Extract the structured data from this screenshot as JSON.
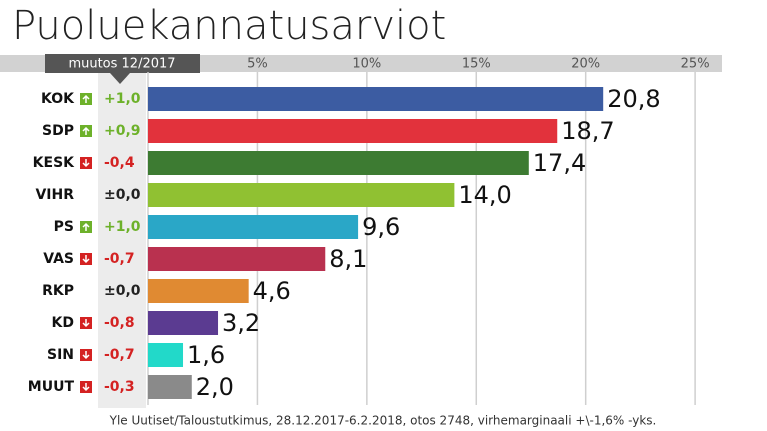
{
  "chart_data": {
    "type": "bar",
    "orientation": "horizontal",
    "title": "Puoluekannatusarviot",
    "change_header": "muutos 12/2017",
    "categories": [
      "KOK",
      "SDP",
      "KESK",
      "VIHR",
      "PS",
      "VAS",
      "RKP",
      "KD",
      "SIN",
      "MUUT"
    ],
    "changes": [
      "+1,0",
      "+0,9",
      "-0,4",
      "±0,0",
      "+1,0",
      "-0,7",
      "±0,0",
      "-0,8",
      "-0,7",
      "-0,3"
    ],
    "values": [
      20.8,
      18.7,
      17.4,
      14.0,
      9.6,
      8.1,
      4.6,
      3.2,
      1.6,
      2.0
    ],
    "value_labels": [
      "20,8",
      "18,7",
      "17,4",
      "14,0",
      "9,6",
      "8,1",
      "4,6",
      "3,2",
      "1,6",
      "2,0"
    ],
    "colors": [
      "#3c5ca2",
      "#e2323c",
      "#3d7b32",
      "#90c132",
      "#2aa7c7",
      "#b9314f",
      "#e08a32",
      "#5b3b91",
      "#22d9c9",
      "#8a8a8a"
    ],
    "xlim": [
      0,
      26
    ],
    "xticks": [
      {
        "value": 5,
        "label": "5%"
      },
      {
        "value": 10,
        "label": "10%"
      },
      {
        "value": 15,
        "label": "15%"
      },
      {
        "value": 20,
        "label": "20%"
      },
      {
        "value": 25,
        "label": "25%"
      }
    ],
    "grid": true,
    "source": "Yle Uutiset/Taloustutkimus, 28.12.2017-6.2.2018, otos 2748, virhemarginaali +\\-1,6% -yks."
  }
}
